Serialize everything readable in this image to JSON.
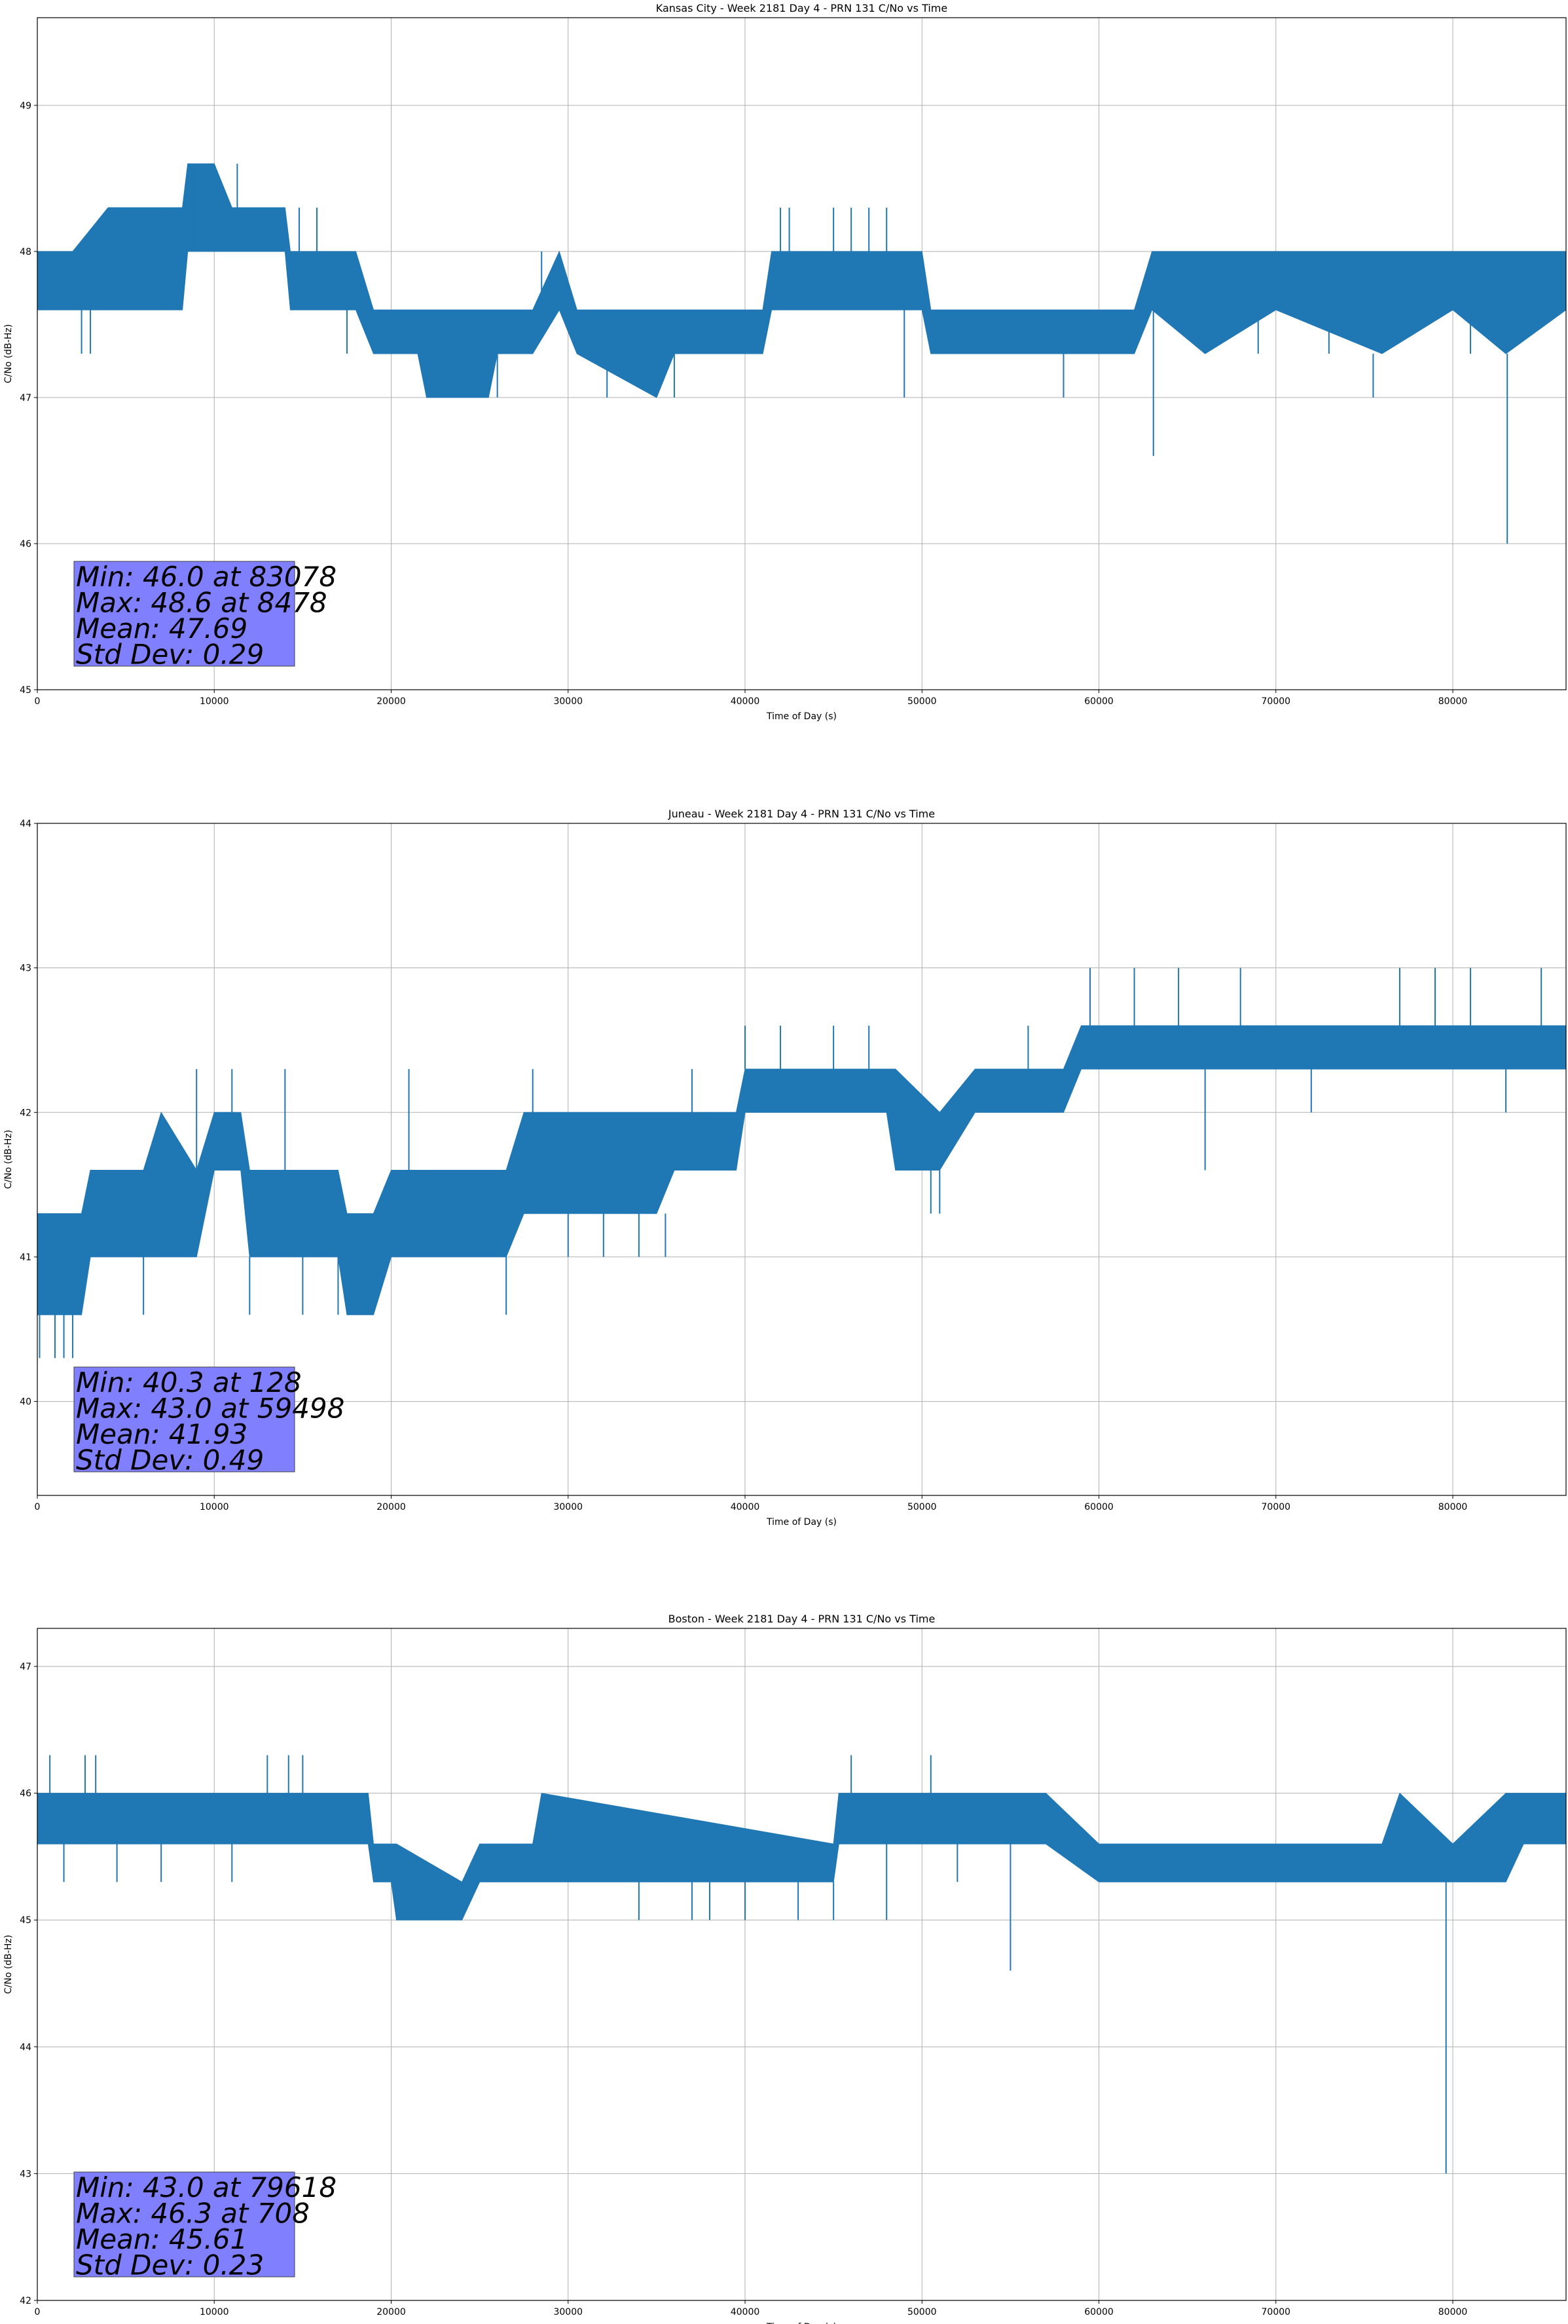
{
  "chart_data": [
    {
      "type": "line",
      "title": "Kansas City - Week 2181 Day 4 - PRN 131 C/No vs Time",
      "xlabel": "Time of Day (s)",
      "ylabel": "C/No (dB-Hz)",
      "xlim": [
        0,
        86400
      ],
      "ylim": [
        45,
        49.6
      ],
      "xticks": [
        0,
        10000,
        20000,
        30000,
        40000,
        50000,
        60000,
        70000,
        80000
      ],
      "yticks": [
        45,
        46,
        47,
        48,
        49
      ],
      "grid": true,
      "series": [
        {
          "color": "#1f77b4",
          "band": [
            [
              0,
              47.6,
              48.0
            ],
            [
              2000,
              47.6,
              48.0
            ],
            [
              4000,
              47.6,
              48.3
            ],
            [
              6000,
              47.6,
              48.3
            ],
            [
              8200,
              47.6,
              48.3
            ],
            [
              8500,
              48.0,
              48.6
            ],
            [
              10000,
              48.0,
              48.6
            ],
            [
              11000,
              48.0,
              48.3
            ],
            [
              14000,
              48.0,
              48.3
            ],
            [
              14300,
              47.6,
              48.0
            ],
            [
              18000,
              47.6,
              48.0
            ],
            [
              19000,
              47.3,
              47.6
            ],
            [
              21500,
              47.3,
              47.6
            ],
            [
              22000,
              47.0,
              47.6
            ],
            [
              25500,
              47.0,
              47.6
            ],
            [
              26000,
              47.3,
              47.6
            ],
            [
              28000,
              47.3,
              47.6
            ],
            [
              29500,
              47.6,
              48.0
            ],
            [
              30500,
              47.3,
              47.6
            ],
            [
              35000,
              47.0,
              47.6
            ],
            [
              36000,
              47.3,
              47.6
            ],
            [
              41000,
              47.3,
              47.6
            ],
            [
              41500,
              47.6,
              48.0
            ],
            [
              50000,
              47.6,
              48.0
            ],
            [
              50500,
              47.3,
              47.6
            ],
            [
              58000,
              47.3,
              47.6
            ],
            [
              62000,
              47.3,
              47.6
            ],
            [
              63000,
              47.6,
              48.0
            ],
            [
              66000,
              47.3,
              48.0
            ],
            [
              70000,
              47.6,
              48.0
            ],
            [
              76000,
              47.3,
              48.0
            ],
            [
              80000,
              47.6,
              48.0
            ],
            [
              83000,
              47.3,
              48.0
            ],
            [
              86400,
              47.6,
              48.0
            ]
          ],
          "spikes": [
            [
              2500,
              47.3
            ],
            [
              3000,
              47.3
            ],
            [
              4500,
              48.3
            ],
            [
              7200,
              48.3
            ],
            [
              8800,
              48.6
            ],
            [
              11300,
              48.6
            ],
            [
              13000,
              48.3
            ],
            [
              14800,
              48.3
            ],
            [
              15800,
              48.3
            ],
            [
              17500,
              47.3
            ],
            [
              22500,
              47.0
            ],
            [
              24000,
              47.0
            ],
            [
              26000,
              47.0
            ],
            [
              28500,
              48.0
            ],
            [
              31000,
              47.3
            ],
            [
              32200,
              47.0
            ],
            [
              33500,
              47.0
            ],
            [
              36000,
              47.0
            ],
            [
              42000,
              48.3
            ],
            [
              42500,
              48.3
            ],
            [
              45000,
              48.3
            ],
            [
              46000,
              48.3
            ],
            [
              47000,
              48.3
            ],
            [
              48000,
              48.3
            ],
            [
              49000,
              47.0
            ],
            [
              52000,
              47.3
            ],
            [
              56000,
              47.3
            ],
            [
              58000,
              47.0
            ],
            [
              60000,
              47.3
            ],
            [
              61500,
              47.3
            ],
            [
              63078,
              46.6
            ],
            [
              65000,
              47.3
            ],
            [
              69000,
              47.3
            ],
            [
              73000,
              47.3
            ],
            [
              75500,
              47.0
            ],
            [
              78000,
              47.3
            ],
            [
              81000,
              47.3
            ],
            [
              83078,
              46.0
            ],
            [
              84000,
              47.3
            ]
          ]
        }
      ],
      "stats": [
        "Min: 46.0 at 83078",
        "Max: 48.6 at 8478",
        "Mean: 47.69",
        "Std Dev: 0.29"
      ],
      "stats_box_color": "#8080ff"
    },
    {
      "type": "line",
      "title": "Juneau - Week 2181 Day 4 - PRN 131 C/No vs Time",
      "xlabel": "Time of Day (s)",
      "ylabel": "C/No (dB-Hz)",
      "xlim": [
        0,
        86400
      ],
      "ylim": [
        39.35,
        44
      ],
      "xticks": [
        0,
        10000,
        20000,
        30000,
        40000,
        50000,
        60000,
        70000,
        80000
      ],
      "yticks": [
        40,
        41,
        42,
        43,
        44
      ],
      "grid": true,
      "series": [
        {
          "color": "#1f77b4",
          "band": [
            [
              0,
              40.6,
              41.3
            ],
            [
              1500,
              40.6,
              41.3
            ],
            [
              2500,
              40.6,
              41.3
            ],
            [
              3000,
              41.0,
              41.6
            ],
            [
              5000,
              41.0,
              41.6
            ],
            [
              6000,
              41.0,
              41.6
            ],
            [
              7000,
              41.0,
              42.0
            ],
            [
              9000,
              41.0,
              41.6
            ],
            [
              10000,
              41.6,
              42.0
            ],
            [
              11500,
              41.6,
              42.0
            ],
            [
              12000,
              41.0,
              41.6
            ],
            [
              17000,
              41.0,
              41.6
            ],
            [
              17500,
              40.6,
              41.3
            ],
            [
              19000,
              40.6,
              41.3
            ],
            [
              20000,
              41.0,
              41.6
            ],
            [
              26500,
              41.0,
              41.6
            ],
            [
              27500,
              41.3,
              42.0
            ],
            [
              30000,
              41.3,
              42.0
            ],
            [
              35000,
              41.3,
              42.0
            ],
            [
              36000,
              41.6,
              42.0
            ],
            [
              39500,
              41.6,
              42.0
            ],
            [
              40000,
              42.0,
              42.3
            ],
            [
              48000,
              42.0,
              42.3
            ],
            [
              48500,
              41.6,
              42.3
            ],
            [
              51000,
              41.6,
              42.0
            ],
            [
              53000,
              42.0,
              42.3
            ],
            [
              58000,
              42.0,
              42.3
            ],
            [
              59000,
              42.3,
              42.6
            ],
            [
              70000,
              42.3,
              42.6
            ],
            [
              77000,
              42.3,
              42.6
            ],
            [
              80000,
              42.3,
              42.6
            ],
            [
              86400,
              42.3,
              42.6
            ]
          ],
          "spikes": [
            [
              128,
              40.3
            ],
            [
              1000,
              40.3
            ],
            [
              1500,
              40.3
            ],
            [
              2000,
              40.3
            ],
            [
              6000,
              40.6
            ],
            [
              9000,
              42.3
            ],
            [
              11000,
              42.3
            ],
            [
              12000,
              40.6
            ],
            [
              14000,
              42.3
            ],
            [
              15000,
              40.6
            ],
            [
              17000,
              40.6
            ],
            [
              19000,
              40.6
            ],
            [
              21000,
              42.3
            ],
            [
              26500,
              40.6
            ],
            [
              28000,
              42.3
            ],
            [
              30000,
              41.0
            ],
            [
              32000,
              41.0
            ],
            [
              34000,
              41.0
            ],
            [
              35500,
              41.0
            ],
            [
              37000,
              42.3
            ],
            [
              40000,
              42.6
            ],
            [
              42000,
              42.6
            ],
            [
              45000,
              42.6
            ],
            [
              47000,
              42.6
            ],
            [
              50500,
              41.3
            ],
            [
              51000,
              41.3
            ],
            [
              56000,
              42.6
            ],
            [
              59498,
              43.0
            ],
            [
              62000,
              43.0
            ],
            [
              64500,
              43.0
            ],
            [
              66000,
              41.6
            ],
            [
              68000,
              43.0
            ],
            [
              72000,
              42.0
            ],
            [
              77000,
              43.0
            ],
            [
              79000,
              43.0
            ],
            [
              81000,
              43.0
            ],
            [
              83000,
              42.0
            ],
            [
              85000,
              43.0
            ]
          ]
        }
      ],
      "stats": [
        "Min: 40.3 at 128",
        "Max: 43.0 at 59498",
        "Mean: 41.93",
        "Std Dev: 0.49"
      ],
      "stats_box_color": "#8080ff"
    },
    {
      "type": "line",
      "title": "Boston - Week 2181 Day 4 - PRN 131 C/No vs Time",
      "xlabel": "Time of Day (s)",
      "ylabel": "C/No (dB-Hz)",
      "xlim": [
        0,
        86400
      ],
      "ylim": [
        42,
        47.3
      ],
      "xticks": [
        0,
        10000,
        20000,
        30000,
        40000,
        50000,
        60000,
        70000,
        80000
      ],
      "yticks": [
        42,
        43,
        44,
        45,
        46,
        47
      ],
      "grid": true,
      "series": [
        {
          "color": "#1f77b4",
          "band": [
            [
              0,
              45.6,
              46.0
            ],
            [
              10000,
              45.6,
              46.0
            ],
            [
              18000,
              45.6,
              46.0
            ],
            [
              18700,
              45.6,
              46.0
            ],
            [
              19000,
              45.3,
              45.6
            ],
            [
              20000,
              45.3,
              45.6
            ],
            [
              20300,
              45.0,
              45.6
            ],
            [
              24000,
              45.0,
              45.3
            ],
            [
              25000,
              45.3,
              45.6
            ],
            [
              28000,
              45.3,
              45.6
            ],
            [
              28500,
              45.3,
              46.0
            ],
            [
              45000,
              45.3,
              45.6
            ],
            [
              45300,
              45.6,
              46.0
            ],
            [
              51500,
              45.6,
              46.0
            ],
            [
              57000,
              45.6,
              46.0
            ],
            [
              60000,
              45.3,
              45.6
            ],
            [
              70000,
              45.3,
              45.6
            ],
            [
              76000,
              45.3,
              45.6
            ],
            [
              77000,
              45.3,
              46.0
            ],
            [
              80000,
              45.3,
              45.6
            ],
            [
              83000,
              45.3,
              46.0
            ],
            [
              84000,
              45.6,
              46.0
            ],
            [
              86400,
              45.6,
              46.0
            ]
          ],
          "spikes": [
            [
              708,
              46.3
            ],
            [
              1500,
              45.3
            ],
            [
              2700,
              46.3
            ],
            [
              3300,
              46.3
            ],
            [
              4500,
              45.3
            ],
            [
              7000,
              45.3
            ],
            [
              11000,
              45.3
            ],
            [
              13000,
              46.3
            ],
            [
              14200,
              46.3
            ],
            [
              15000,
              46.3
            ],
            [
              21500,
              45.0
            ],
            [
              24000,
              45.0
            ],
            [
              30000,
              45.3
            ],
            [
              34000,
              45.0
            ],
            [
              37000,
              45.0
            ],
            [
              38000,
              45.0
            ],
            [
              40000,
              45.0
            ],
            [
              43000,
              45.0
            ],
            [
              45000,
              45.0
            ],
            [
              46000,
              46.3
            ],
            [
              48000,
              45.0
            ],
            [
              50500,
              46.3
            ],
            [
              52000,
              45.3
            ],
            [
              55000,
              44.6
            ],
            [
              62000,
              45.3
            ],
            [
              67000,
              45.3
            ],
            [
              73000,
              45.3
            ],
            [
              77000,
              45.3
            ],
            [
              79618,
              43.0
            ],
            [
              81000,
              45.3
            ],
            [
              83000,
              45.3
            ]
          ]
        }
      ],
      "stats": [
        "Min: 43.0 at 79618",
        "Max: 46.3 at 708",
        "Mean: 45.61",
        "Std Dev: 0.23"
      ],
      "stats_box_color": "#8080ff"
    }
  ]
}
